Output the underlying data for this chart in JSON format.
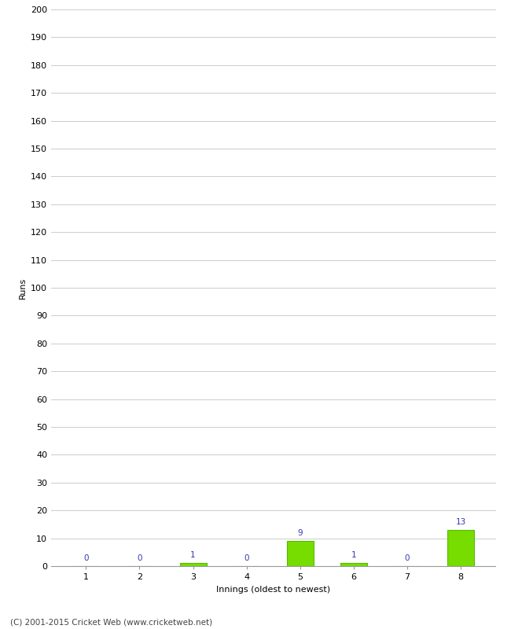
{
  "xlabel": "Innings (oldest to newest)",
  "ylabel": "Runs",
  "categories": [
    1,
    2,
    3,
    4,
    5,
    6,
    7,
    8
  ],
  "values": [
    0,
    0,
    1,
    0,
    9,
    1,
    0,
    13
  ],
  "bar_color": "#77dd00",
  "bar_edge_color": "#55bb00",
  "value_color": "#3333bb",
  "ylim": [
    0,
    200
  ],
  "yticks": [
    0,
    10,
    20,
    30,
    40,
    50,
    60,
    70,
    80,
    90,
    100,
    110,
    120,
    130,
    140,
    150,
    160,
    170,
    180,
    190,
    200
  ],
  "background_color": "#ffffff",
  "grid_color": "#cccccc",
  "footer": "(C) 2001-2015 Cricket Web (www.cricketweb.net)",
  "xlabel_fontsize": 8,
  "ylabel_fontsize": 8,
  "tick_fontsize": 8,
  "value_fontsize": 7.5,
  "footer_fontsize": 7.5
}
